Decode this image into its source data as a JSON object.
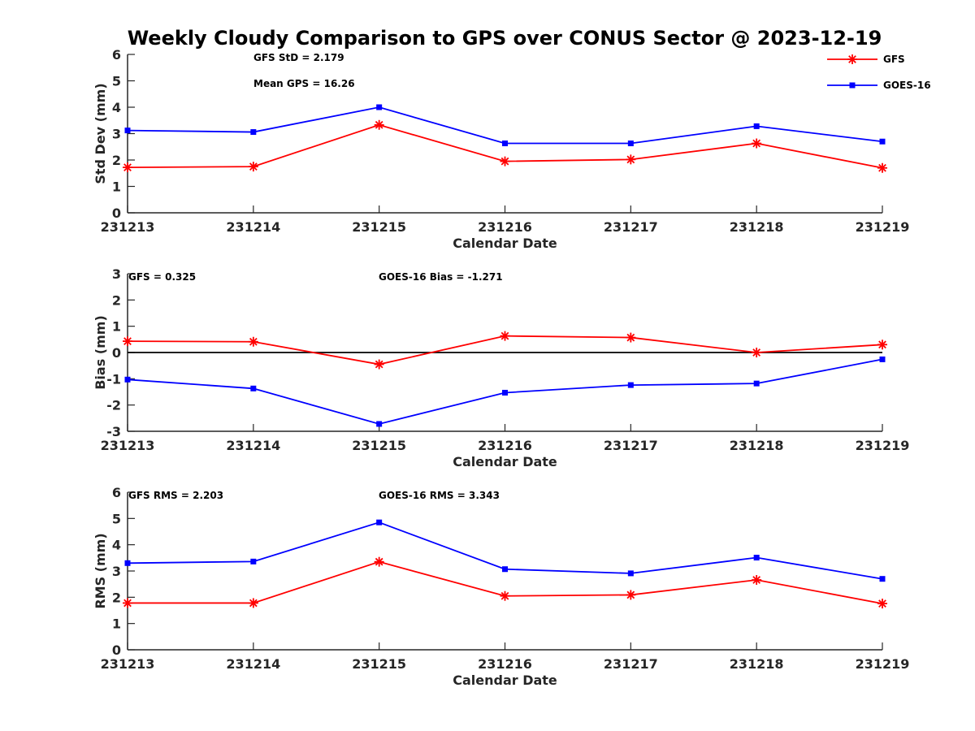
{
  "chart_data": [
    {
      "type": "line",
      "title": "Weekly Cloudy Comparison to GPS over CONUS Sector @ 2023-12-19",
      "xlabel": "Calendar Date",
      "ylabel": "Std Dev (mm)",
      "categories": [
        "231213",
        "231214",
        "231215",
        "231216",
        "231217",
        "231218",
        "231219"
      ],
      "ylim": [
        0,
        6
      ],
      "yticks": [
        "0",
        "1",
        "2",
        "3",
        "4",
        "5",
        "6"
      ],
      "grid": false,
      "legend": "top-right",
      "annotations": [
        "GFS StD = 2.179",
        "Mean GPS = 16.26"
      ],
      "series": [
        {
          "name": "GFS",
          "color": "#ff0000",
          "marker": "asterisk",
          "values": [
            1.72,
            1.75,
            3.33,
            1.95,
            2.02,
            2.63,
            1.7
          ]
        },
        {
          "name": "GOES-16",
          "color": "#0000ff",
          "marker": "square",
          "values": [
            3.12,
            3.06,
            4.0,
            2.63,
            2.63,
            3.28,
            2.7
          ]
        }
      ]
    },
    {
      "type": "line",
      "xlabel": "Calendar Date",
      "ylabel": "Bias (mm)",
      "categories": [
        "231213",
        "231214",
        "231215",
        "231216",
        "231217",
        "231218",
        "231219"
      ],
      "ylim": [
        -3,
        3
      ],
      "yticks": [
        "-3",
        "-2",
        "-1",
        "0",
        "1",
        "2",
        "3"
      ],
      "zero_line": true,
      "grid": false,
      "annotations": [
        "GFS = 0.325",
        "GOES-16 Bias  = -1.271"
      ],
      "series": [
        {
          "color": "#ff0000",
          "marker": "asterisk",
          "values": [
            0.43,
            0.41,
            -0.45,
            0.63,
            0.57,
            0.0,
            0.3
          ]
        },
        {
          "color": "#0000ff",
          "marker": "square",
          "values": [
            -1.03,
            -1.37,
            -2.72,
            -1.53,
            -1.24,
            -1.18,
            -0.26
          ]
        }
      ]
    },
    {
      "type": "line",
      "xlabel": "Calendar Date",
      "ylabel": "RMS (mm)",
      "categories": [
        "231213",
        "231214",
        "231215",
        "231216",
        "231217",
        "231218",
        "231219"
      ],
      "ylim": [
        0,
        6
      ],
      "yticks": [
        "0",
        "1",
        "2",
        "3",
        "4",
        "5",
        "6"
      ],
      "grid": false,
      "annotations": [
        "GFS RMS = 2.203",
        "GOES-16 RMS = 3.343"
      ],
      "series": [
        {
          "color": "#ff0000",
          "marker": "asterisk",
          "values": [
            1.78,
            1.78,
            3.35,
            2.05,
            2.09,
            2.66,
            1.76
          ]
        },
        {
          "color": "#0000ff",
          "marker": "square",
          "values": [
            3.3,
            3.36,
            4.85,
            3.07,
            2.91,
            3.51,
            2.7
          ]
        }
      ]
    }
  ]
}
